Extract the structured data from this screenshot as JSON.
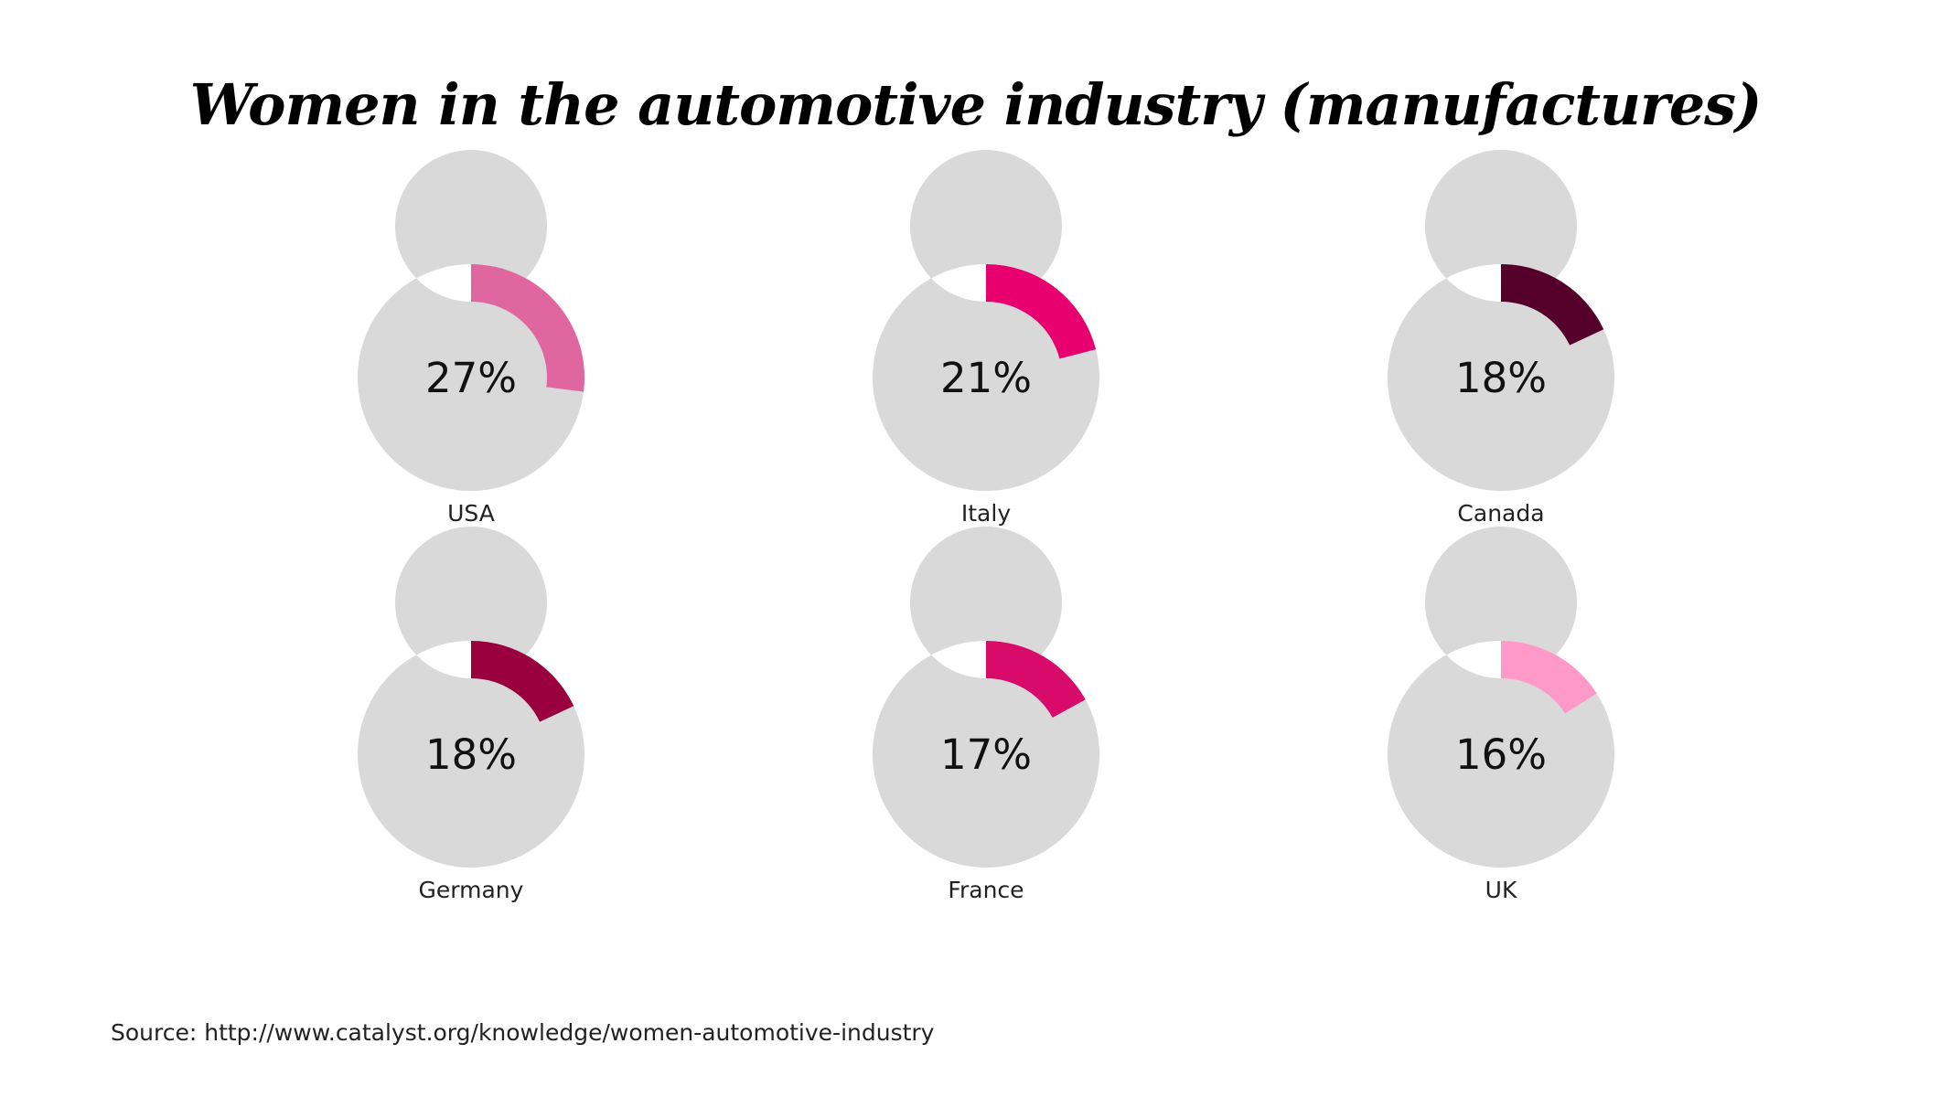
{
  "title": "Women in the automotive industry (manufactures)",
  "source": "Source: http://www.catalyst.org/knowledge/women-automotive-industry",
  "track_color": "#d9d9d9",
  "chart_data": {
    "type": "pie",
    "title": "Women in the automotive industry (manufactures)",
    "charts": [
      {
        "country": "USA",
        "value": 27,
        "label": "27%",
        "color": "#e066a0"
      },
      {
        "country": "Italy",
        "value": 21,
        "label": "21%",
        "color": "#e8006e"
      },
      {
        "country": "Canada",
        "value": 18,
        "label": "18%",
        "color": "#55002a"
      },
      {
        "country": "Germany",
        "value": 18,
        "label": "18%",
        "color": "#99003d"
      },
      {
        "country": "France",
        "value": 17,
        "label": "17%",
        "color": "#d80b6b"
      },
      {
        "country": "UK",
        "value": 16,
        "label": "16%",
        "color": "#ff99c8"
      }
    ]
  }
}
